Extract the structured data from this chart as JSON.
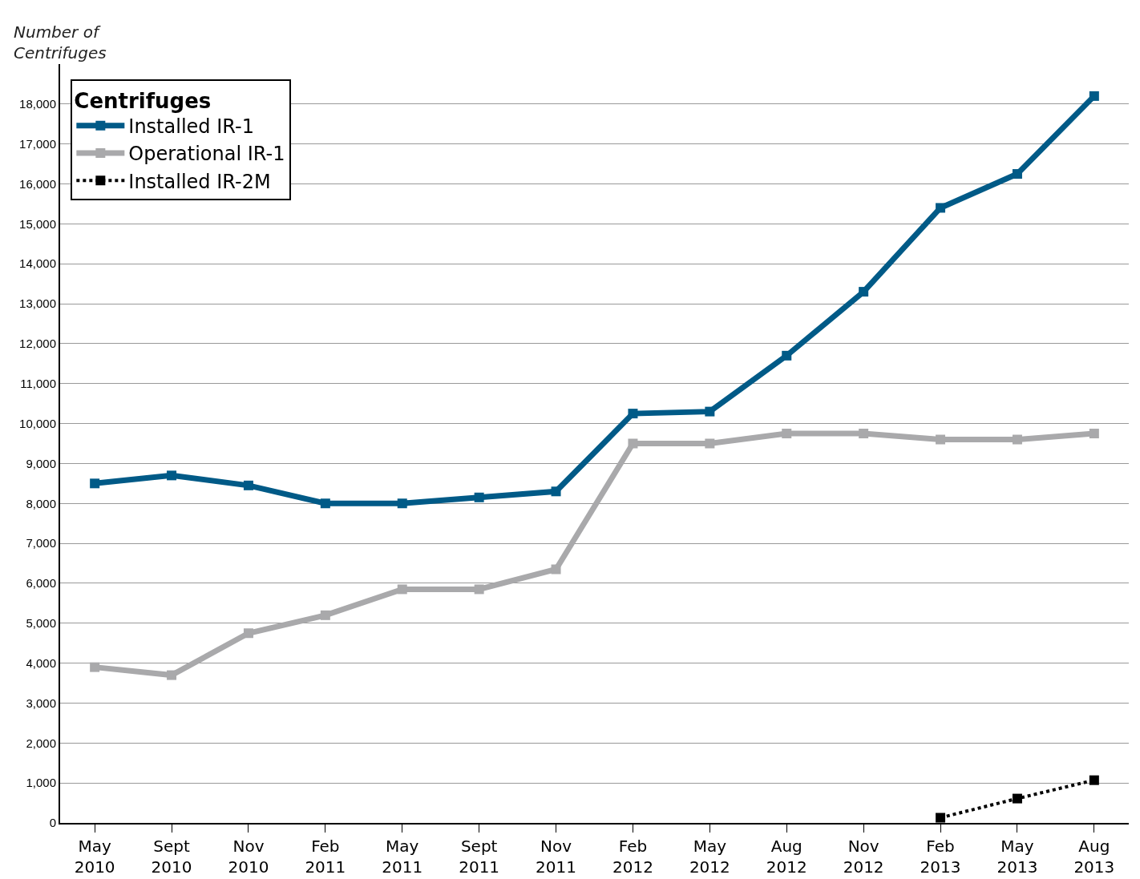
{
  "chart_data": {
    "type": "line",
    "ylabel": "Number of Centrifuges",
    "legend_title": "Centrifuges",
    "categories": [
      "May 2010",
      "Sept 2010",
      "Nov 2010",
      "Feb 2011",
      "May 2011",
      "Sept 2011",
      "Nov 2011",
      "Feb 2012",
      "May 2012",
      "Aug 2012",
      "Nov 2012",
      "Feb 2013",
      "May 2013",
      "Aug 2013"
    ],
    "series": [
      {
        "name": "Installed IR-1",
        "color": "#005a87",
        "values": [
          8500,
          8700,
          8450,
          8000,
          8000,
          8150,
          8300,
          10250,
          10300,
          11700,
          13300,
          15400,
          16250,
          18200
        ]
      },
      {
        "name": "Operational IR-1",
        "color": "#a9a9ab",
        "values": [
          3900,
          3700,
          4750,
          5200,
          5850,
          5850,
          6350,
          9500,
          9500,
          9750,
          9750,
          9600,
          9600,
          9750
        ]
      },
      {
        "name": "Installed IR-2M",
        "color": "#000000",
        "line_style": "dotted",
        "values": [
          null,
          null,
          null,
          null,
          null,
          null,
          null,
          null,
          null,
          null,
          null,
          130,
          610,
          1070
        ]
      }
    ],
    "ylim": [
      0,
      19000
    ],
    "yticks": [
      0,
      {
        "value": 1000,
        "label": "1,000"
      },
      {
        "value": 2000,
        "label": "2,000"
      },
      {
        "value": 3000,
        "label": "3,000"
      },
      {
        "value": 4000,
        "label": "4,000"
      },
      {
        "value": 5000,
        "label": "5,000"
      },
      {
        "value": 6000,
        "label": "6,000"
      },
      {
        "value": 7000,
        "label": "7,000"
      },
      {
        "value": 8000,
        "label": "8,000"
      },
      {
        "value": 9000,
        "label": "9,000"
      },
      {
        "value": 10000,
        "label": "10,000"
      },
      {
        "value": 11000,
        "label": "11,000"
      },
      {
        "value": 12000,
        "label": "12,000"
      },
      {
        "value": 13000,
        "label": "13,000"
      },
      {
        "value": 14000,
        "label": "14,000"
      },
      {
        "value": 15000,
        "label": "15,000"
      },
      {
        "value": 16000,
        "label": "16,000"
      },
      {
        "value": 17000,
        "label": "17,000"
      },
      {
        "value": 18000,
        "label": "18,000"
      }
    ],
    "grid": "y",
    "legend": "top left",
    "marker": "square",
    "line_style": "solid"
  }
}
